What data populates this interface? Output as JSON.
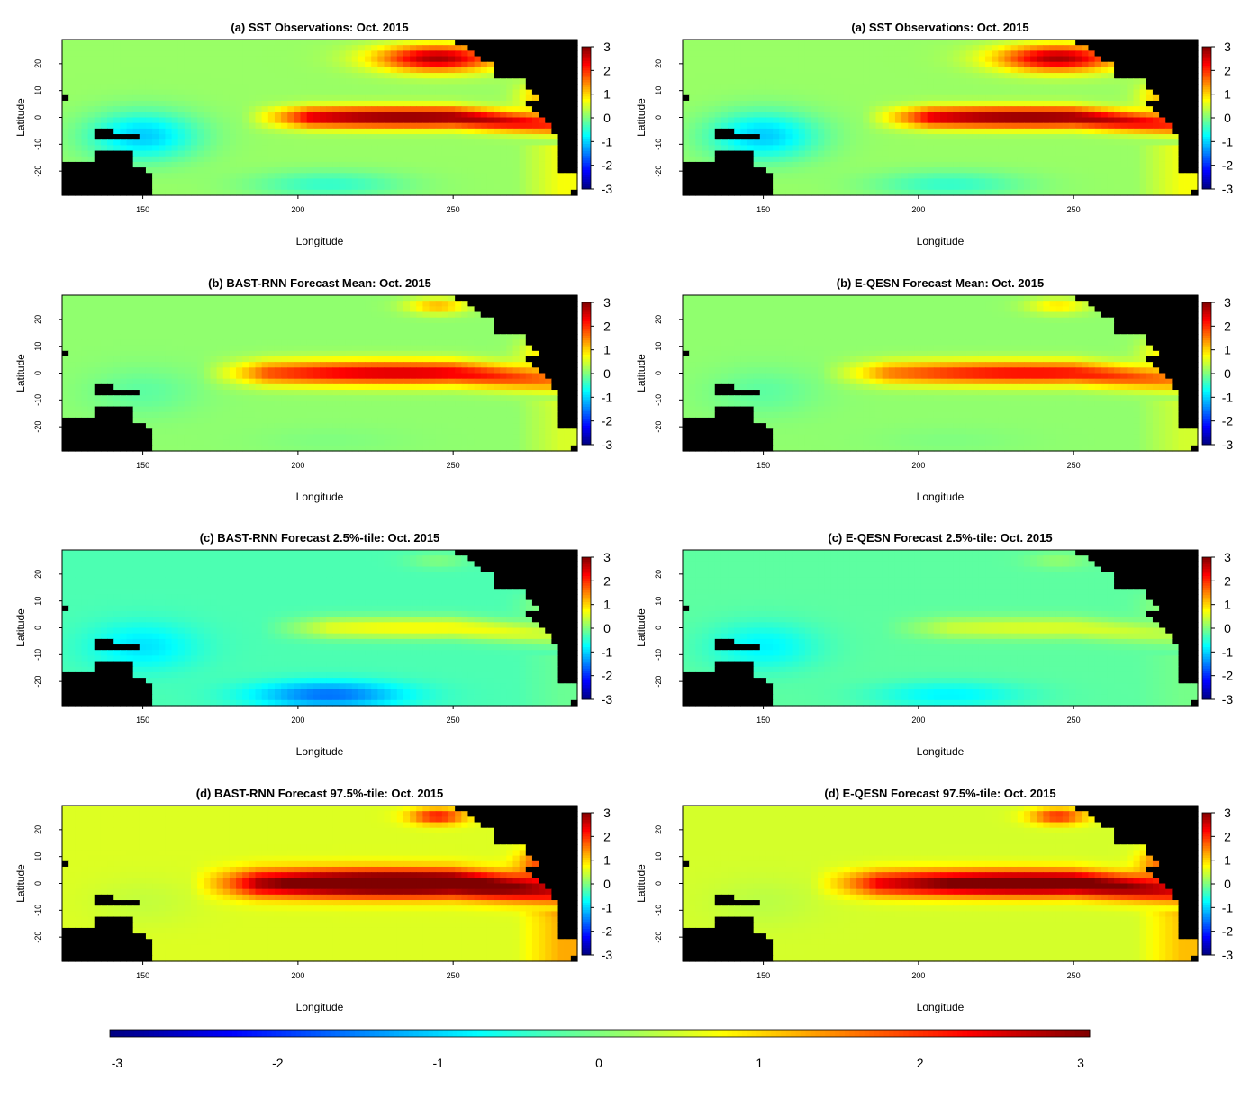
{
  "figure": {
    "panels": [
      {
        "id": "obs-left",
        "title": "(a) SST Observations:  Oct.   2015",
        "field": "obs",
        "col": 0,
        "row": 0
      },
      {
        "id": "obs-right",
        "title": "(a) SST Observations:  Oct.   2015",
        "field": "obs",
        "col": 1,
        "row": 0
      },
      {
        "id": "bast-mean",
        "title": "(b) BAST-RNN Forecast Mean:  Oct.   2015",
        "field": "bast_mean",
        "col": 0,
        "row": 1
      },
      {
        "id": "eqesn-mean",
        "title": "(b) E-QESN Forecast Mean:  Oct.   2015",
        "field": "eqesn_mean",
        "col": 1,
        "row": 1
      },
      {
        "id": "bast-p025",
        "title": "(c) BAST-RNN Forecast 2.5%-tile:  Oct.   2015",
        "field": "bast_lo",
        "col": 0,
        "row": 2
      },
      {
        "id": "eqesn-p025",
        "title": "(c) E-QESN Forecast 2.5%-tile:  Oct.   2015",
        "field": "eqesn_lo",
        "col": 1,
        "row": 2
      },
      {
        "id": "bast-p975",
        "title": "(d) BAST-RNN Forecast 97.5%-tile:  Oct.   2015",
        "field": "bast_hi",
        "col": 0,
        "row": 3
      },
      {
        "id": "eqesn-p975",
        "title": "(d) E-QESN Forecast 97.5%-tile:  Oct.   2015",
        "field": "eqesn_hi",
        "col": 1,
        "row": 3
      }
    ],
    "xlabel": "Longitude",
    "ylabel": "Latitude",
    "colorbar_ticks": [
      "-3",
      "-2",
      "-1",
      "0",
      "1",
      "2",
      "3"
    ],
    "colormap": [
      "#00007f",
      "#0000ff",
      "#007fff",
      "#00ffff",
      "#7fff7f",
      "#ffff00",
      "#ff7f00",
      "#ff0000",
      "#7f0000"
    ],
    "land_color": "#000000"
  },
  "chart_data": {
    "type": "heatmap",
    "xlim": [
      124,
      290
    ],
    "ylim": [
      -29,
      29
    ],
    "x_ticks": [
      150,
      200,
      250
    ],
    "y_ticks": [
      -20,
      -10,
      0,
      10,
      20
    ],
    "value_range": [
      -3,
      3
    ],
    "fields": {
      "obs": {
        "eq_amp": 2.85,
        "eq_lon0": 182,
        "eq_center": 236,
        "eq_width": 3.9,
        "ne_amp": 2.6,
        "ne_lon": 245,
        "ne_lat": 22,
        "ne_lon_sd": 20,
        "ne_lat_sd": 5,
        "bg": 0.15,
        "west_cool": -1.2,
        "sw_cool": -0.6,
        "coastal": 1.6
      },
      "bast_mean": {
        "eq_amp": 2.4,
        "eq_lon0": 168,
        "eq_center": 232,
        "eq_width": 4.6,
        "ne_amp": 1.1,
        "ne_lon": 245,
        "ne_lat": 25,
        "ne_lon_sd": 10,
        "ne_lat_sd": 3,
        "bg": 0.1,
        "west_cool": -0.3,
        "sw_cool": -0.1,
        "coastal": 1.2
      },
      "eqesn_mean": {
        "eq_amp": 2.15,
        "eq_lon0": 168,
        "eq_center": 236,
        "eq_width": 4.4,
        "ne_amp": 0.8,
        "ne_lon": 245,
        "ne_lat": 25,
        "ne_lon_sd": 10,
        "ne_lat_sd": 3,
        "bg": 0.1,
        "west_cool": -0.3,
        "sw_cool": -0.1,
        "coastal": 1.1
      },
      "bast_lo": {
        "eq_amp": 1.05,
        "eq_lon0": 188,
        "eq_center": 240,
        "eq_width": 4.0,
        "ne_amp": 0.3,
        "ne_lon": 245,
        "ne_lat": 25,
        "ne_lon_sd": 10,
        "ne_lat_sd": 3,
        "bg": -0.3,
        "west_cool": -0.6,
        "sw_cool": -1.3,
        "coastal": 0.5
      },
      "eqesn_lo": {
        "eq_amp": 0.75,
        "eq_lon0": 188,
        "eq_center": 240,
        "eq_width": 4.0,
        "ne_amp": 0.3,
        "ne_lon": 245,
        "ne_lat": 25,
        "ne_lon_sd": 10,
        "ne_lat_sd": 3,
        "bg": -0.2,
        "west_cool": -0.6,
        "sw_cool": -0.6,
        "coastal": 0.4
      },
      "bast_hi": {
        "eq_amp": 3.3,
        "eq_lon0": 165,
        "eq_center": 232,
        "eq_width": 5.2,
        "ne_amp": 1.6,
        "ne_lon": 245,
        "ne_lat": 25,
        "ne_lon_sd": 9,
        "ne_lat_sd": 3,
        "bg": 0.55,
        "west_cool": -0.15,
        "sw_cool": 0.0,
        "coastal": 2.0
      },
      "eqesn_hi": {
        "eq_amp": 3.0,
        "eq_lon0": 165,
        "eq_center": 236,
        "eq_width": 4.8,
        "ne_amp": 1.5,
        "ne_lon": 245,
        "ne_lat": 25,
        "ne_lon_sd": 9,
        "ne_lat_sd": 3,
        "bg": 0.5,
        "west_cool": -0.15,
        "sw_cool": 0.0,
        "coastal": 1.8
      }
    }
  }
}
